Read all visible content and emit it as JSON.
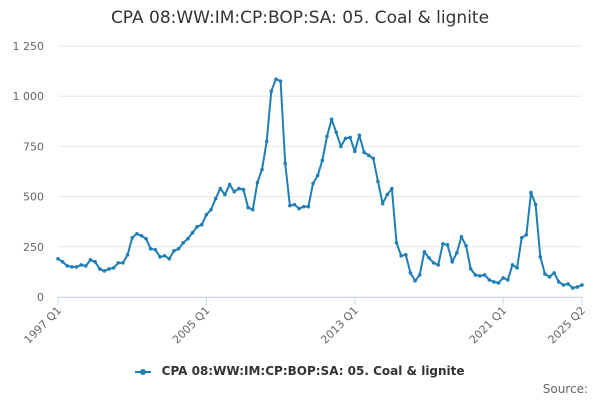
{
  "chart_data": {
    "type": "line",
    "title": "CPA 08:WW:IM:CP:BOP:SA: 05. Coal & lignite",
    "ylim": [
      0,
      1250
    ],
    "yticks": [
      0,
      250,
      500,
      750,
      1000,
      1250
    ],
    "ytick_labels": [
      "0",
      "250",
      "500",
      "750",
      "1 000",
      "1 250"
    ],
    "xticks": [
      {
        "label": "1997 Q1",
        "index": 0
      },
      {
        "label": "2005 Q1",
        "index": 32
      },
      {
        "label": "2013 Q1",
        "index": 64
      },
      {
        "label": "2021 Q1",
        "index": 96
      },
      {
        "label": "2025 Q2",
        "index": 113
      }
    ],
    "grid": true,
    "legend": "bottom",
    "series": [
      {
        "name": "CPA 08:WW:IM:CP:BOP:SA: 05. Coal & lignite",
        "color": "#1f7fb4",
        "values": [
          190,
          175,
          155,
          150,
          150,
          160,
          155,
          185,
          175,
          140,
          130,
          140,
          145,
          170,
          170,
          210,
          295,
          315,
          305,
          290,
          240,
          235,
          200,
          205,
          190,
          230,
          240,
          270,
          290,
          320,
          350,
          360,
          410,
          435,
          490,
          540,
          510,
          560,
          525,
          540,
          535,
          445,
          435,
          570,
          635,
          775,
          1025,
          1085,
          1075,
          665,
          455,
          460,
          440,
          450,
          450,
          565,
          605,
          680,
          800,
          885,
          820,
          750,
          790,
          795,
          725,
          805,
          720,
          705,
          690,
          575,
          465,
          510,
          540,
          270,
          205,
          210,
          120,
          80,
          110,
          225,
          195,
          170,
          160,
          265,
          260,
          175,
          220,
          300,
          255,
          140,
          110,
          105,
          110,
          85,
          75,
          70,
          95,
          85,
          160,
          145,
          295,
          310,
          520,
          460,
          200,
          115,
          100,
          120,
          75,
          60,
          65,
          45,
          50,
          60
        ]
      }
    ]
  },
  "credits": "Source:"
}
